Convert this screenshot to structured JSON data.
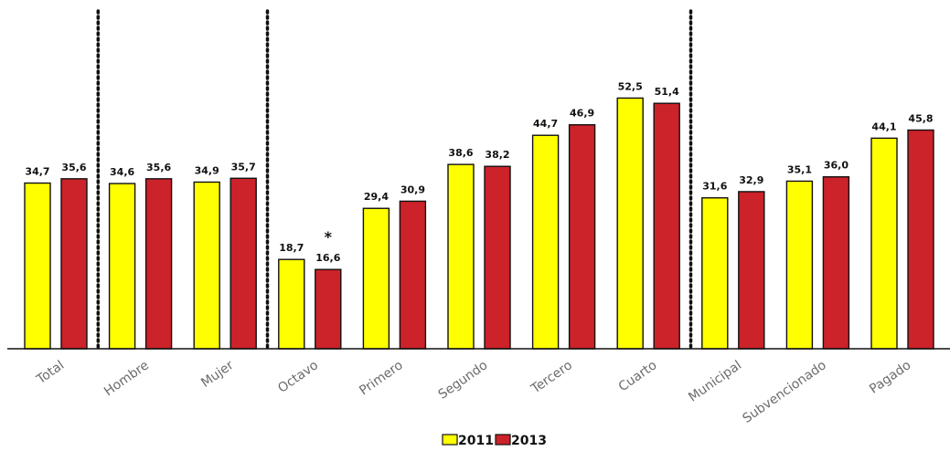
{
  "chart_data": {
    "type": "bar",
    "categories": [
      "Total",
      "Hombre",
      "Mujer",
      "Octavo",
      "Primero",
      "Segundo",
      "Tercero",
      "Cuarto",
      "Municipal",
      "Subvencionado",
      "Pagado"
    ],
    "series": [
      {
        "name": "2011",
        "color": "#ffff00",
        "values": [
          34.7,
          34.6,
          34.9,
          18.7,
          29.4,
          38.6,
          44.7,
          52.5,
          31.6,
          35.1,
          44.1
        ],
        "labels": [
          "34,7",
          "34,6",
          "34,9",
          "18,7",
          "29,4",
          "38,6",
          "44,7",
          "52,5",
          "31,6",
          "35,1",
          "44,1"
        ]
      },
      {
        "name": "2013",
        "color": "#cc2229",
        "values": [
          35.6,
          35.6,
          35.7,
          16.6,
          30.9,
          38.2,
          46.9,
          51.4,
          32.9,
          36.0,
          45.8
        ],
        "labels": [
          "35,6",
          "35,6",
          "35,7",
          "16,6",
          "30,9",
          "38,2",
          "46,9",
          "51,4",
          "32,9",
          "36,0",
          "45,8"
        ]
      }
    ],
    "annotations": [
      {
        "category": "Octavo",
        "series": "2013",
        "text": "*"
      }
    ],
    "separators_after": [
      "Total",
      "Mujer",
      "Cuarto"
    ],
    "ylim": [
      0,
      60
    ],
    "grid": false,
    "legend_position": "bottom-center",
    "title": "",
    "xlabel": "",
    "ylabel": ""
  }
}
